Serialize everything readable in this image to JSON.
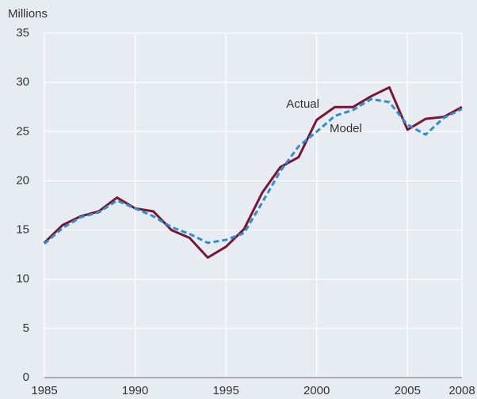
{
  "chart_data": {
    "type": "line",
    "y_label": "Millions",
    "x": [
      1985,
      1986,
      1987,
      1988,
      1989,
      1990,
      1991,
      1992,
      1993,
      1994,
      1995,
      1996,
      1997,
      1998,
      1999,
      2000,
      2001,
      2002,
      2003,
      2004,
      2005,
      2006,
      2007,
      2008
    ],
    "series": [
      {
        "name": "Actual",
        "color": "#7a1631",
        "dashed": false,
        "values": [
          13.7,
          15.5,
          16.4,
          16.9,
          18.3,
          17.2,
          16.9,
          15.0,
          14.2,
          12.2,
          13.3,
          15.1,
          18.8,
          21.4,
          22.4,
          26.2,
          27.5,
          27.5,
          28.6,
          29.5,
          25.2,
          26.3,
          26.5,
          27.5
        ]
      },
      {
        "name": "Model",
        "color": "#2b8fd1",
        "dashed": true,
        "values": [
          13.6,
          15.2,
          16.3,
          16.8,
          18.0,
          17.2,
          16.4,
          15.3,
          14.6,
          13.7,
          14.0,
          14.7,
          17.8,
          21.0,
          23.5,
          25.0,
          26.6,
          27.2,
          28.3,
          28.0,
          25.7,
          24.7,
          26.4,
          27.3
        ]
      }
    ],
    "xlim": [
      1985,
      2008
    ],
    "xticks": [
      1985,
      1990,
      1995,
      2000,
      2005,
      2008
    ],
    "ylim": [
      0,
      35
    ],
    "yticks": [
      0,
      5,
      10,
      15,
      20,
      25,
      30,
      35
    ],
    "grid": true
  }
}
